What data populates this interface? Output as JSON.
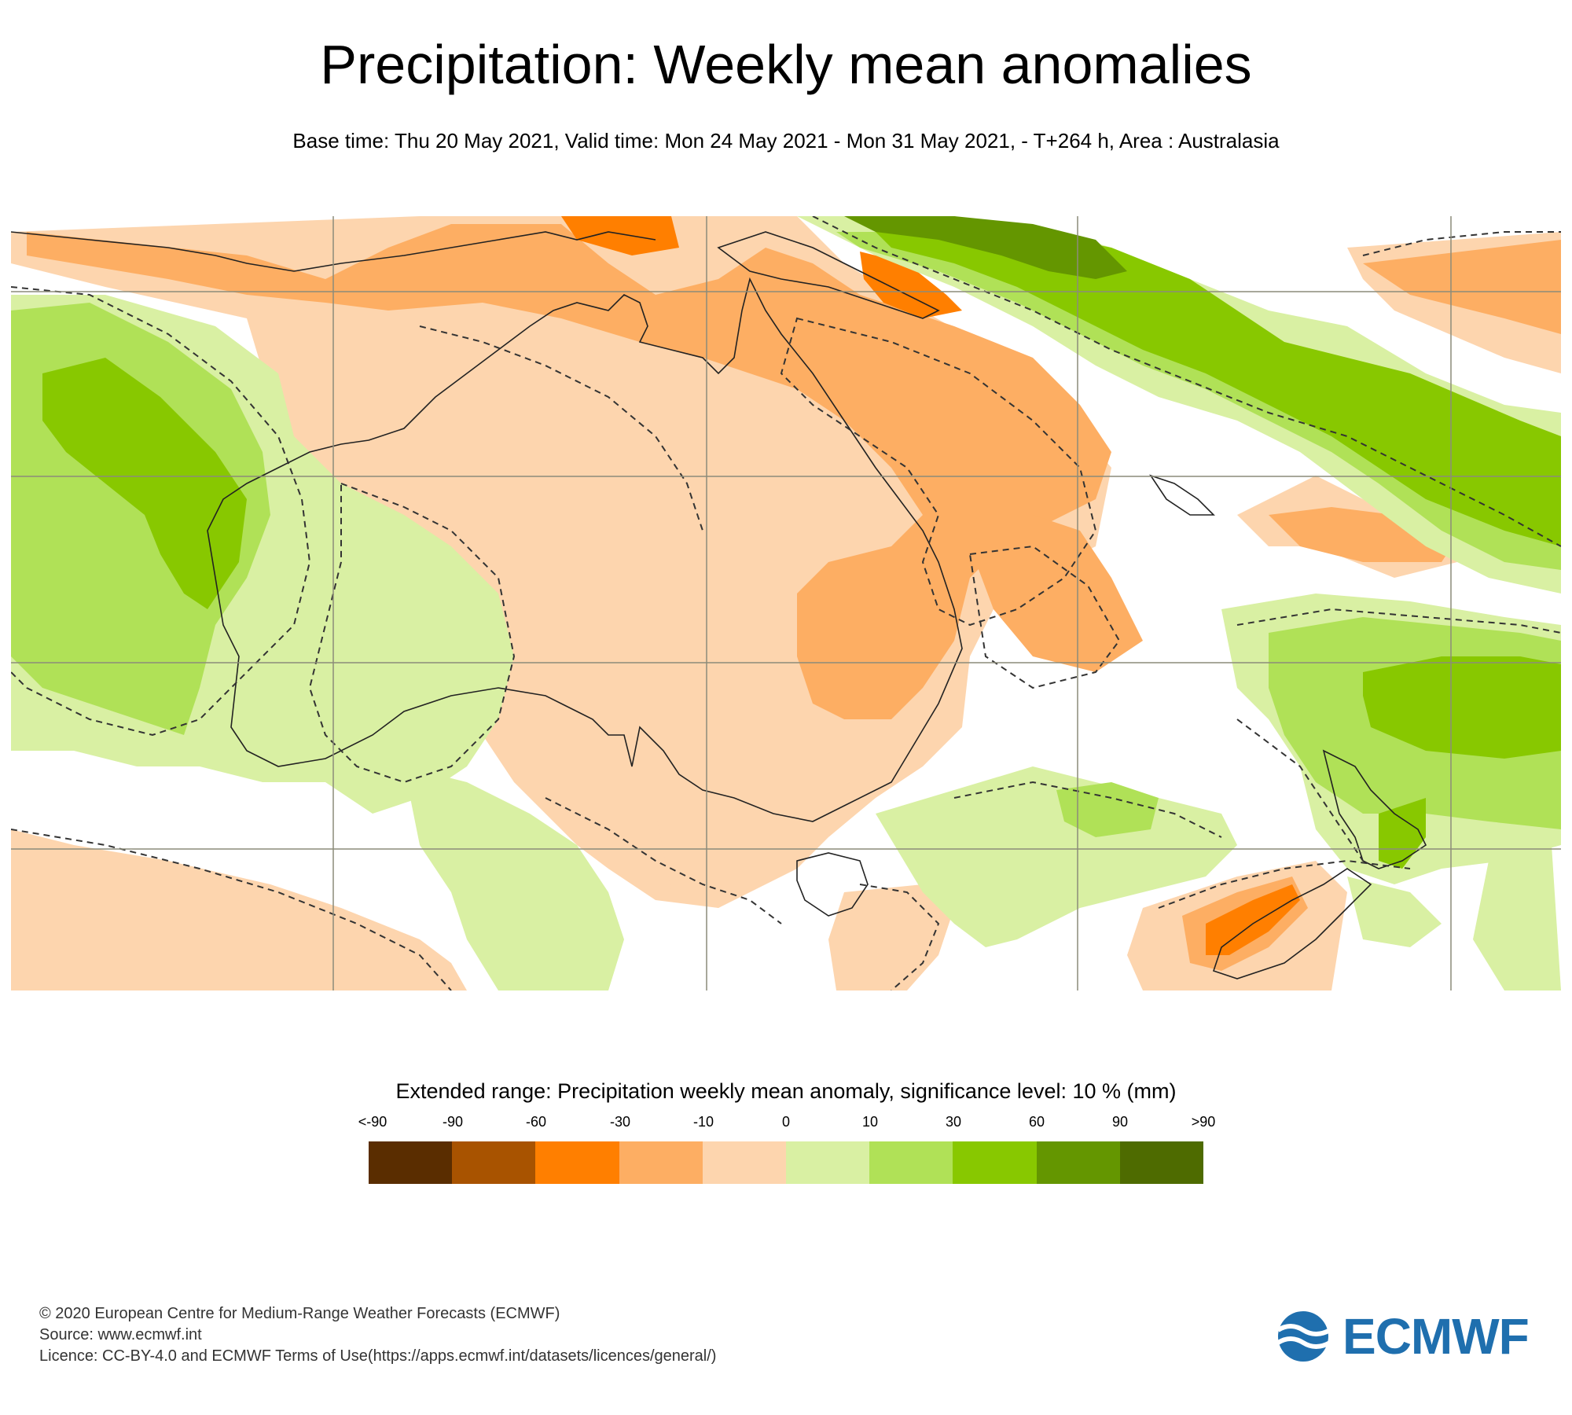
{
  "header": {
    "title": "Precipitation: Weekly mean anomalies",
    "subtitle": "Base time: Thu 20 May 2021, Valid time: Mon 24 May 2021 - Mon 31 May 2021, - T+264 h, Area : Australasia"
  },
  "map": {
    "area": "Australasia",
    "graticule": true,
    "coastlines": true,
    "significance_contour": "dashed"
  },
  "legend": {
    "title": "Extended range: Precipitation weekly mean anomaly, significance level: 10 % (mm)",
    "labels": [
      "<-90",
      "-90",
      "-60",
      "-30",
      "-10",
      "0",
      "10",
      "30",
      "60",
      "90",
      ">90"
    ],
    "colors": [
      "#5a2d00",
      "#a85300",
      "#ff7f00",
      "#fdae63",
      "#fdd5ae",
      "#d9f0a3",
      "#b0e157",
      "#88c800",
      "#649600",
      "#4e6b00"
    ]
  },
  "footer": {
    "line1": "© 2020 European Centre for Medium-Range Weather Forecasts (ECMWF)",
    "line2": "Source: www.ecmwf.int",
    "line3": "Licence: CC-BY-4.0 and ECMWF Terms of Use(https://apps.ecmwf.int/datasets/licences/general/)"
  },
  "logo": {
    "text": "ECMWF",
    "color": "#1f6fae"
  }
}
